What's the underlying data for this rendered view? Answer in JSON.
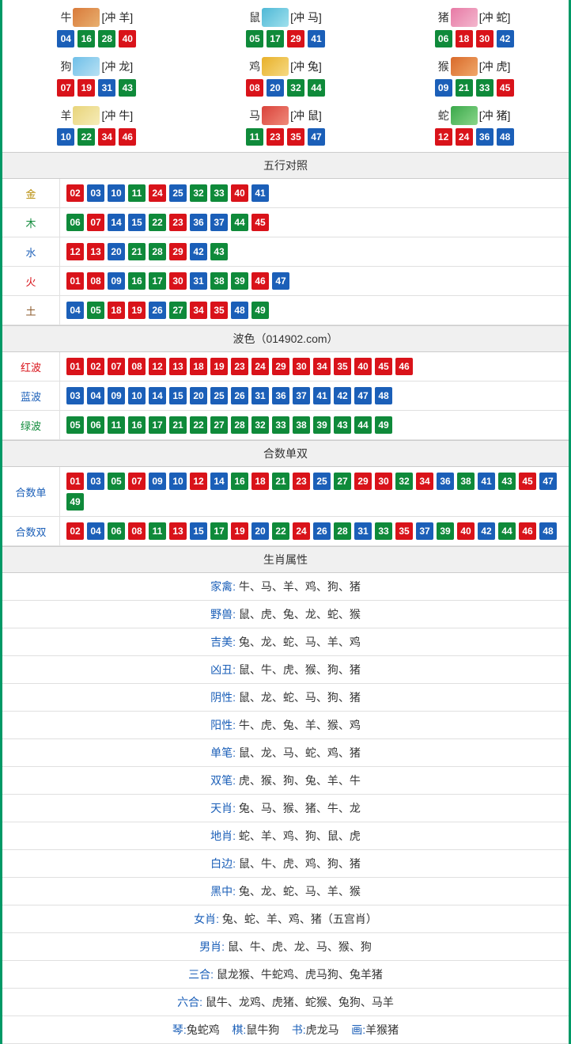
{
  "colors": {
    "red": "#d9131a",
    "blue": "#1b5fb8",
    "green": "#0f8a3a",
    "border": "#009966"
  },
  "zodiac": [
    {
      "name": "牛",
      "img_bg": "linear-gradient(135deg,#d97a3a,#e8b070)",
      "conflict": "[冲 羊]",
      "nums": [
        {
          "n": "04",
          "c": "blue"
        },
        {
          "n": "16",
          "c": "green"
        },
        {
          "n": "28",
          "c": "green"
        },
        {
          "n": "40",
          "c": "red"
        }
      ]
    },
    {
      "name": "鼠",
      "img_bg": "linear-gradient(135deg,#4fb8d6,#9fe0ed)",
      "conflict": "[冲 马]",
      "nums": [
        {
          "n": "05",
          "c": "green"
        },
        {
          "n": "17",
          "c": "green"
        },
        {
          "n": "29",
          "c": "red"
        },
        {
          "n": "41",
          "c": "blue"
        }
      ]
    },
    {
      "name": "猪",
      "img_bg": "linear-gradient(135deg,#e77aa5,#f3b7ce)",
      "conflict": "[冲 蛇]",
      "nums": [
        {
          "n": "06",
          "c": "green"
        },
        {
          "n": "18",
          "c": "red"
        },
        {
          "n": "30",
          "c": "red"
        },
        {
          "n": "42",
          "c": "blue"
        }
      ]
    },
    {
      "name": "狗",
      "img_bg": "linear-gradient(135deg,#6fbfe8,#b8e1f4)",
      "conflict": "[冲 龙]",
      "nums": [
        {
          "n": "07",
          "c": "red"
        },
        {
          "n": "19",
          "c": "red"
        },
        {
          "n": "31",
          "c": "blue"
        },
        {
          "n": "43",
          "c": "green"
        }
      ]
    },
    {
      "name": "鸡",
      "img_bg": "linear-gradient(135deg,#e8b02a,#f6da82)",
      "conflict": "[冲 兔]",
      "nums": [
        {
          "n": "08",
          "c": "red"
        },
        {
          "n": "20",
          "c": "blue"
        },
        {
          "n": "32",
          "c": "green"
        },
        {
          "n": "44",
          "c": "green"
        }
      ]
    },
    {
      "name": "猴",
      "img_bg": "linear-gradient(135deg,#d96a2a,#f0a86a)",
      "conflict": "[冲 虎]",
      "nums": [
        {
          "n": "09",
          "c": "blue"
        },
        {
          "n": "21",
          "c": "green"
        },
        {
          "n": "33",
          "c": "green"
        },
        {
          "n": "45",
          "c": "red"
        }
      ]
    },
    {
      "name": "羊",
      "img_bg": "linear-gradient(135deg,#e8d47a,#f6ecb8)",
      "conflict": "[冲 牛]",
      "nums": [
        {
          "n": "10",
          "c": "blue"
        },
        {
          "n": "22",
          "c": "green"
        },
        {
          "n": "34",
          "c": "red"
        },
        {
          "n": "46",
          "c": "red"
        }
      ]
    },
    {
      "name": "马",
      "img_bg": "linear-gradient(135deg,#d9423a,#f08a7a)",
      "conflict": "[冲 鼠]",
      "nums": [
        {
          "n": "11",
          "c": "green"
        },
        {
          "n": "23",
          "c": "red"
        },
        {
          "n": "35",
          "c": "red"
        },
        {
          "n": "47",
          "c": "blue"
        }
      ]
    },
    {
      "name": "蛇",
      "img_bg": "linear-gradient(135deg,#3aa84a,#8ad68a)",
      "conflict": "[冲 猪]",
      "nums": [
        {
          "n": "12",
          "c": "red"
        },
        {
          "n": "24",
          "c": "red"
        },
        {
          "n": "36",
          "c": "blue"
        },
        {
          "n": "48",
          "c": "blue"
        }
      ]
    }
  ],
  "sections": {
    "wuxing_title": "五行对照",
    "wuxing": [
      {
        "label": "金",
        "labelClass": "c-gold",
        "nums": [
          {
            "n": "02",
            "c": "red"
          },
          {
            "n": "03",
            "c": "blue"
          },
          {
            "n": "10",
            "c": "blue"
          },
          {
            "n": "11",
            "c": "green"
          },
          {
            "n": "24",
            "c": "red"
          },
          {
            "n": "25",
            "c": "blue"
          },
          {
            "n": "32",
            "c": "green"
          },
          {
            "n": "33",
            "c": "green"
          },
          {
            "n": "40",
            "c": "red"
          },
          {
            "n": "41",
            "c": "blue"
          }
        ]
      },
      {
        "label": "木",
        "labelClass": "c-wood",
        "nums": [
          {
            "n": "06",
            "c": "green"
          },
          {
            "n": "07",
            "c": "red"
          },
          {
            "n": "14",
            "c": "blue"
          },
          {
            "n": "15",
            "c": "blue"
          },
          {
            "n": "22",
            "c": "green"
          },
          {
            "n": "23",
            "c": "red"
          },
          {
            "n": "36",
            "c": "blue"
          },
          {
            "n": "37",
            "c": "blue"
          },
          {
            "n": "44",
            "c": "green"
          },
          {
            "n": "45",
            "c": "red"
          }
        ]
      },
      {
        "label": "水",
        "labelClass": "c-water",
        "nums": [
          {
            "n": "12",
            "c": "red"
          },
          {
            "n": "13",
            "c": "red"
          },
          {
            "n": "20",
            "c": "blue"
          },
          {
            "n": "21",
            "c": "green"
          },
          {
            "n": "28",
            "c": "green"
          },
          {
            "n": "29",
            "c": "red"
          },
          {
            "n": "42",
            "c": "blue"
          },
          {
            "n": "43",
            "c": "green"
          }
        ]
      },
      {
        "label": "火",
        "labelClass": "c-fire",
        "nums": [
          {
            "n": "01",
            "c": "red"
          },
          {
            "n": "08",
            "c": "red"
          },
          {
            "n": "09",
            "c": "blue"
          },
          {
            "n": "16",
            "c": "green"
          },
          {
            "n": "17",
            "c": "green"
          },
          {
            "n": "30",
            "c": "red"
          },
          {
            "n": "31",
            "c": "blue"
          },
          {
            "n": "38",
            "c": "green"
          },
          {
            "n": "39",
            "c": "green"
          },
          {
            "n": "46",
            "c": "red"
          },
          {
            "n": "47",
            "c": "blue"
          }
        ]
      },
      {
        "label": "土",
        "labelClass": "c-earth",
        "nums": [
          {
            "n": "04",
            "c": "blue"
          },
          {
            "n": "05",
            "c": "green"
          },
          {
            "n": "18",
            "c": "red"
          },
          {
            "n": "19",
            "c": "red"
          },
          {
            "n": "26",
            "c": "blue"
          },
          {
            "n": "27",
            "c": "green"
          },
          {
            "n": "34",
            "c": "red"
          },
          {
            "n": "35",
            "c": "red"
          },
          {
            "n": "48",
            "c": "blue"
          },
          {
            "n": "49",
            "c": "green"
          }
        ]
      }
    ],
    "bose_title": "波色（014902.com）",
    "bose": [
      {
        "label": "红波",
        "labelClass": "c-red",
        "nums": [
          {
            "n": "01",
            "c": "red"
          },
          {
            "n": "02",
            "c": "red"
          },
          {
            "n": "07",
            "c": "red"
          },
          {
            "n": "08",
            "c": "red"
          },
          {
            "n": "12",
            "c": "red"
          },
          {
            "n": "13",
            "c": "red"
          },
          {
            "n": "18",
            "c": "red"
          },
          {
            "n": "19",
            "c": "red"
          },
          {
            "n": "23",
            "c": "red"
          },
          {
            "n": "24",
            "c": "red"
          },
          {
            "n": "29",
            "c": "red"
          },
          {
            "n": "30",
            "c": "red"
          },
          {
            "n": "34",
            "c": "red"
          },
          {
            "n": "35",
            "c": "red"
          },
          {
            "n": "40",
            "c": "red"
          },
          {
            "n": "45",
            "c": "red"
          },
          {
            "n": "46",
            "c": "red"
          }
        ]
      },
      {
        "label": "蓝波",
        "labelClass": "c-blue",
        "nums": [
          {
            "n": "03",
            "c": "blue"
          },
          {
            "n": "04",
            "c": "blue"
          },
          {
            "n": "09",
            "c": "blue"
          },
          {
            "n": "10",
            "c": "blue"
          },
          {
            "n": "14",
            "c": "blue"
          },
          {
            "n": "15",
            "c": "blue"
          },
          {
            "n": "20",
            "c": "blue"
          },
          {
            "n": "25",
            "c": "blue"
          },
          {
            "n": "26",
            "c": "blue"
          },
          {
            "n": "31",
            "c": "blue"
          },
          {
            "n": "36",
            "c": "blue"
          },
          {
            "n": "37",
            "c": "blue"
          },
          {
            "n": "41",
            "c": "blue"
          },
          {
            "n": "42",
            "c": "blue"
          },
          {
            "n": "47",
            "c": "blue"
          },
          {
            "n": "48",
            "c": "blue"
          }
        ]
      },
      {
        "label": "绿波",
        "labelClass": "c-green",
        "nums": [
          {
            "n": "05",
            "c": "green"
          },
          {
            "n": "06",
            "c": "green"
          },
          {
            "n": "11",
            "c": "green"
          },
          {
            "n": "16",
            "c": "green"
          },
          {
            "n": "17",
            "c": "green"
          },
          {
            "n": "21",
            "c": "green"
          },
          {
            "n": "22",
            "c": "green"
          },
          {
            "n": "27",
            "c": "green"
          },
          {
            "n": "28",
            "c": "green"
          },
          {
            "n": "32",
            "c": "green"
          },
          {
            "n": "33",
            "c": "green"
          },
          {
            "n": "38",
            "c": "green"
          },
          {
            "n": "39",
            "c": "green"
          },
          {
            "n": "43",
            "c": "green"
          },
          {
            "n": "44",
            "c": "green"
          },
          {
            "n": "49",
            "c": "green"
          }
        ]
      }
    ],
    "heshu_title": "合数单双",
    "heshu": [
      {
        "label": "合数单",
        "labelClass": "c-blue",
        "nums": [
          {
            "n": "01",
            "c": "red"
          },
          {
            "n": "03",
            "c": "blue"
          },
          {
            "n": "05",
            "c": "green"
          },
          {
            "n": "07",
            "c": "red"
          },
          {
            "n": "09",
            "c": "blue"
          },
          {
            "n": "10",
            "c": "blue"
          },
          {
            "n": "12",
            "c": "red"
          },
          {
            "n": "14",
            "c": "blue"
          },
          {
            "n": "16",
            "c": "green"
          },
          {
            "n": "18",
            "c": "red"
          },
          {
            "n": "21",
            "c": "green"
          },
          {
            "n": "23",
            "c": "red"
          },
          {
            "n": "25",
            "c": "blue"
          },
          {
            "n": "27",
            "c": "green"
          },
          {
            "n": "29",
            "c": "red"
          },
          {
            "n": "30",
            "c": "red"
          },
          {
            "n": "32",
            "c": "green"
          },
          {
            "n": "34",
            "c": "red"
          },
          {
            "n": "36",
            "c": "blue"
          },
          {
            "n": "38",
            "c": "green"
          },
          {
            "n": "41",
            "c": "blue"
          },
          {
            "n": "43",
            "c": "green"
          },
          {
            "n": "45",
            "c": "red"
          },
          {
            "n": "47",
            "c": "blue"
          },
          {
            "n": "49",
            "c": "green"
          }
        ]
      },
      {
        "label": "合数双",
        "labelClass": "c-blue",
        "nums": [
          {
            "n": "02",
            "c": "red"
          },
          {
            "n": "04",
            "c": "blue"
          },
          {
            "n": "06",
            "c": "green"
          },
          {
            "n": "08",
            "c": "red"
          },
          {
            "n": "11",
            "c": "green"
          },
          {
            "n": "13",
            "c": "red"
          },
          {
            "n": "15",
            "c": "blue"
          },
          {
            "n": "17",
            "c": "green"
          },
          {
            "n": "19",
            "c": "red"
          },
          {
            "n": "20",
            "c": "blue"
          },
          {
            "n": "22",
            "c": "green"
          },
          {
            "n": "24",
            "c": "red"
          },
          {
            "n": "26",
            "c": "blue"
          },
          {
            "n": "28",
            "c": "green"
          },
          {
            "n": "31",
            "c": "blue"
          },
          {
            "n": "33",
            "c": "green"
          },
          {
            "n": "35",
            "c": "red"
          },
          {
            "n": "37",
            "c": "blue"
          },
          {
            "n": "39",
            "c": "green"
          },
          {
            "n": "40",
            "c": "red"
          },
          {
            "n": "42",
            "c": "blue"
          },
          {
            "n": "44",
            "c": "green"
          },
          {
            "n": "46",
            "c": "red"
          },
          {
            "n": "48",
            "c": "blue"
          }
        ]
      }
    ],
    "attr_title": "生肖属性",
    "attrs": [
      {
        "k": "家禽:",
        "v": "牛、马、羊、鸡、狗、猪"
      },
      {
        "k": "野兽:",
        "v": "鼠、虎、兔、龙、蛇、猴"
      },
      {
        "k": "吉美:",
        "v": "兔、龙、蛇、马、羊、鸡"
      },
      {
        "k": "凶丑:",
        "v": "鼠、牛、虎、猴、狗、猪"
      },
      {
        "k": "阴性:",
        "v": "鼠、龙、蛇、马、狗、猪"
      },
      {
        "k": "阳性:",
        "v": "牛、虎、兔、羊、猴、鸡"
      },
      {
        "k": "单笔:",
        "v": "鼠、龙、马、蛇、鸡、猪"
      },
      {
        "k": "双笔:",
        "v": "虎、猴、狗、兔、羊、牛"
      },
      {
        "k": "天肖:",
        "v": "兔、马、猴、猪、牛、龙"
      },
      {
        "k": "地肖:",
        "v": "蛇、羊、鸡、狗、鼠、虎"
      },
      {
        "k": "白边:",
        "v": "鼠、牛、虎、鸡、狗、猪"
      },
      {
        "k": "黑中:",
        "v": "兔、龙、蛇、马、羊、猴"
      },
      {
        "k": "女肖:",
        "v": "兔、蛇、羊、鸡、猪（五宫肖）"
      },
      {
        "k": "男肖:",
        "v": "鼠、牛、虎、龙、马、猴、狗"
      },
      {
        "k": "三合:",
        "v": "鼠龙猴、牛蛇鸡、虎马狗、兔羊猪"
      },
      {
        "k": "六合:",
        "v": "鼠牛、龙鸡、虎猪、蛇猴、兔狗、马羊"
      }
    ],
    "footer_line": {
      "items": [
        {
          "k": "琴:",
          "v": "兔蛇鸡"
        },
        {
          "k": "棋:",
          "v": "鼠牛狗"
        },
        {
          "k": "书:",
          "v": "虎龙马"
        },
        {
          "k": "画:",
          "v": "羊猴猪"
        }
      ]
    }
  }
}
